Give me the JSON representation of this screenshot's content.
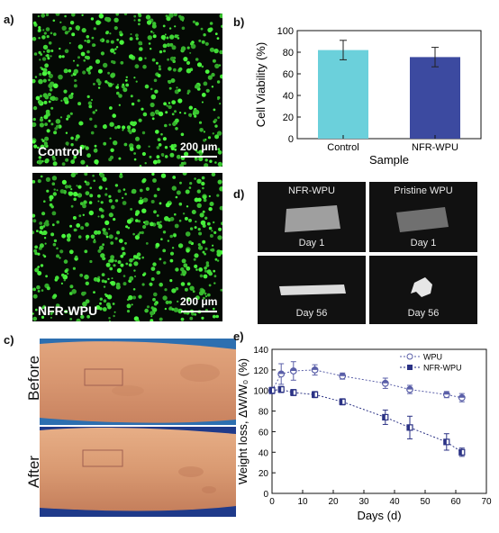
{
  "panels": {
    "a": {
      "label": "a)",
      "images": [
        {
          "label": "Control",
          "scale": "200 μm"
        },
        {
          "label": "NFR-WPU",
          "scale": "200 μm"
        }
      ]
    },
    "b": {
      "label": "b)"
    },
    "c": {
      "label": "c)",
      "before": "Before",
      "after": "After"
    },
    "d": {
      "label": "d)",
      "tiles": [
        {
          "top": "NFR-WPU",
          "bottom": "Day 1"
        },
        {
          "top": "Pristine WPU",
          "bottom": "Day 1"
        },
        {
          "top": "",
          "bottom": "Day 56"
        },
        {
          "top": "",
          "bottom": "Day 56"
        }
      ]
    },
    "e": {
      "label": "e)"
    }
  },
  "colors": {
    "control_bar": "#6bd0db",
    "nfr_bar": "#3c4aa0",
    "wpu_line": "#5a5fa8",
    "nfr_line": "#2b3285"
  },
  "chart_data": [
    {
      "type": "bar",
      "panel": "b",
      "categories": [
        "Control",
        "NFR-WPU"
      ],
      "values": [
        82,
        75.5
      ],
      "errors": [
        9,
        9
      ],
      "xlabel": "Sample",
      "ylabel": "Cell Viability (%)",
      "ylim": [
        0,
        100
      ],
      "yticks": [
        0,
        20,
        40,
        60,
        80,
        100
      ]
    },
    {
      "type": "line",
      "panel": "e",
      "xlabel": "Days (d)",
      "ylabel": "Weight loss, ΔW/W₀ (%)",
      "xlim": [
        0,
        70
      ],
      "ylim": [
        0,
        140
      ],
      "xticks": [
        0,
        10,
        20,
        30,
        40,
        50,
        60,
        70
      ],
      "yticks": [
        0,
        20,
        40,
        60,
        80,
        100,
        120,
        140
      ],
      "legend_position": "top-right",
      "series": [
        {
          "name": "WPU",
          "x": [
            0,
            3,
            7,
            14,
            23,
            37,
            45,
            57,
            62
          ],
          "y": [
            100,
            116,
            119,
            120,
            114,
            107,
            101,
            96,
            93
          ],
          "err": [
            3,
            10,
            9,
            5,
            3,
            5,
            4,
            3,
            4
          ]
        },
        {
          "name": "NFR-WPU",
          "x": [
            0,
            3,
            7,
            14,
            23,
            37,
            45,
            57,
            62
          ],
          "y": [
            100,
            101,
            98,
            96,
            89,
            74,
            64,
            50,
            40
          ],
          "err": [
            3,
            3,
            3,
            3,
            3,
            7,
            11,
            8,
            4
          ]
        }
      ]
    }
  ]
}
